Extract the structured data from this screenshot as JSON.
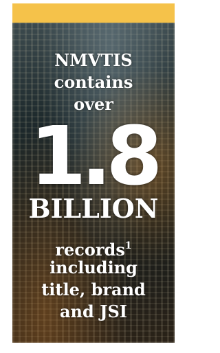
{
  "intro": [
    "NMVTIS",
    "contains",
    "over"
  ],
  "number": "1.8",
  "unit": "BILLION",
  "detail": {
    "first_word": "records",
    "footnote_marker": "1",
    "lines": [
      "including",
      "title, brand",
      "and JSI"
    ]
  }
}
